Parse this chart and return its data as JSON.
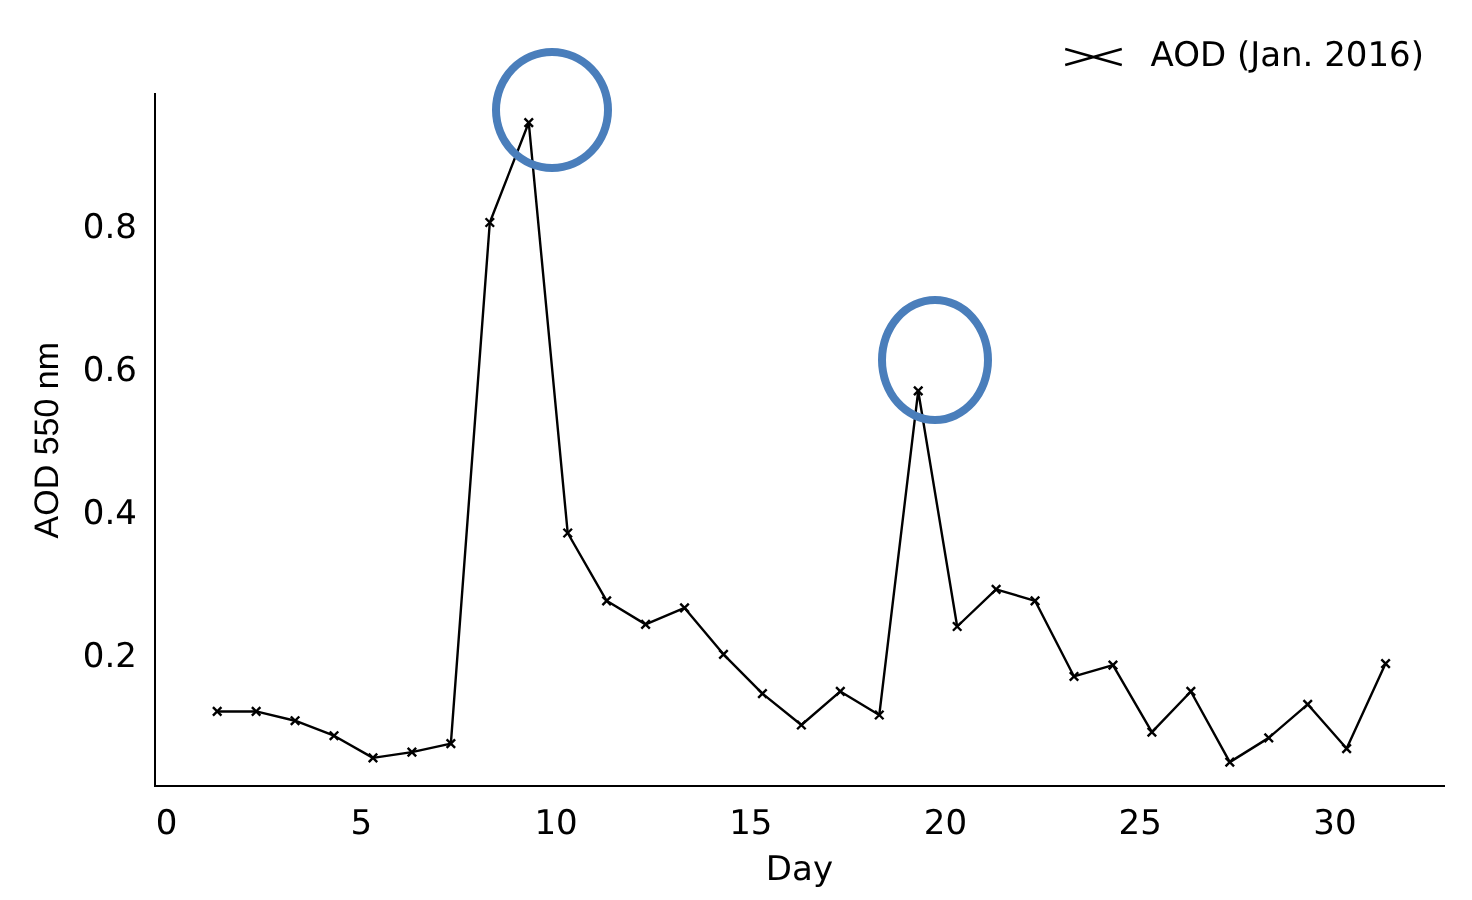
{
  "chart_data": {
    "type": "line",
    "xlabel": "Day",
    "ylabel": "AOD 550 nm",
    "x": [
      1.3,
      2.3,
      3.3,
      4.3,
      5.3,
      6.3,
      7.3,
      8.3,
      9.3,
      10.3,
      11.3,
      12.3,
      13.3,
      14.3,
      15.3,
      16.3,
      17.3,
      18.3,
      19.3,
      20.3,
      21.3,
      22.3,
      23.3,
      24.3,
      25.3,
      26.3,
      27.3,
      28.3,
      29.3,
      30.3,
      31.3
    ],
    "series": [
      {
        "name": "AOD (Jan. 2016)",
        "color": "#000000",
        "values": [
          0.125,
          0.125,
          0.112,
          0.091,
          0.06,
          0.068,
          0.08,
          0.81,
          0.95,
          0.375,
          0.28,
          0.247,
          0.27,
          0.205,
          0.15,
          0.106,
          0.153,
          0.12,
          0.574,
          0.244,
          0.296,
          0.28,
          0.174,
          0.19,
          0.096,
          0.153,
          0.054,
          0.088,
          0.135,
          0.073,
          0.192
        ]
      }
    ],
    "xlim": [
      -0.3,
      32.8
    ],
    "xticks": [
      0,
      5,
      10,
      15,
      20,
      25,
      30
    ],
    "ylim": [
      0.02,
      0.99
    ],
    "yticks": [
      0.2,
      0.4,
      0.6,
      0.8
    ],
    "grid": false,
    "legend": "top right",
    "marker": "cross",
    "line_style": "solid"
  }
}
